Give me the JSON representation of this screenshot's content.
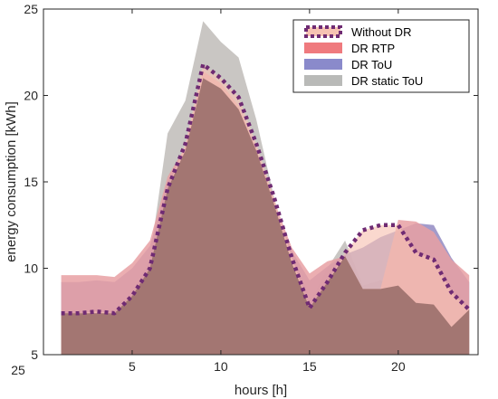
{
  "chart_data": {
    "type": "area",
    "xlabel": "hours [h]",
    "ylabel": "energy consumption [kWh]",
    "xlim": [
      0,
      24.5
    ],
    "ylim": [
      5,
      25
    ],
    "xticks": [
      5,
      10,
      15,
      20
    ],
    "yticks": [
      5,
      10,
      15,
      20,
      25
    ],
    "stray_label": "25",
    "grid": false,
    "legend_position": "top-right",
    "x": [
      1,
      2,
      3,
      4,
      5,
      6,
      7,
      8,
      9,
      10,
      11,
      12,
      13,
      14,
      15,
      16,
      17,
      18,
      19,
      20,
      21,
      22,
      23,
      24
    ],
    "series": [
      {
        "name": "Without DR",
        "style": "dotted-area",
        "fill": "#f7c3b3",
        "line_color": "#6f2b73",
        "values": [
          7.4,
          7.4,
          7.5,
          7.4,
          8.4,
          10.0,
          14.6,
          17.2,
          21.8,
          21.0,
          19.9,
          17.2,
          14.1,
          10.6,
          7.7,
          9.2,
          10.9,
          12.2,
          12.5,
          12.5,
          10.9,
          10.5,
          8.6,
          7.6
        ]
      },
      {
        "name": "DR RTP",
        "style": "area",
        "fill": "#e8a0a3",
        "legend_color": "#ef7a7e",
        "values": [
          9.6,
          9.6,
          9.6,
          9.5,
          10.3,
          11.6,
          15.3,
          17.0,
          21.4,
          20.7,
          19.4,
          16.9,
          13.9,
          11.2,
          9.7,
          10.4,
          10.7,
          8.8,
          8.8,
          12.8,
          12.7,
          12.1,
          10.5,
          9.6
        ]
      },
      {
        "name": "DR ToU",
        "style": "area",
        "fill": "#928ac2",
        "legend_color": "#8a8acb",
        "values": [
          9.2,
          9.2,
          9.3,
          9.2,
          10.0,
          11.3,
          15.0,
          16.8,
          21.0,
          20.4,
          19.2,
          16.8,
          13.7,
          11.0,
          9.3,
          10.1,
          10.8,
          11.2,
          11.8,
          12.2,
          12.6,
          12.5,
          10.6,
          9.2
        ]
      },
      {
        "name": "DR static ToU",
        "style": "area",
        "fill": "#bfbcb8",
        "legend_color": "#b9bab8",
        "values": [
          7.4,
          7.4,
          7.4,
          7.4,
          8.5,
          10.6,
          17.8,
          19.7,
          24.3,
          23.1,
          22.2,
          18.6,
          14.1,
          10.3,
          8.0,
          10.0,
          11.6,
          9.0,
          9.3,
          9.0,
          8.0,
          7.9,
          6.6,
          7.6
        ]
      }
    ],
    "overlap_fill": "#a37672"
  }
}
